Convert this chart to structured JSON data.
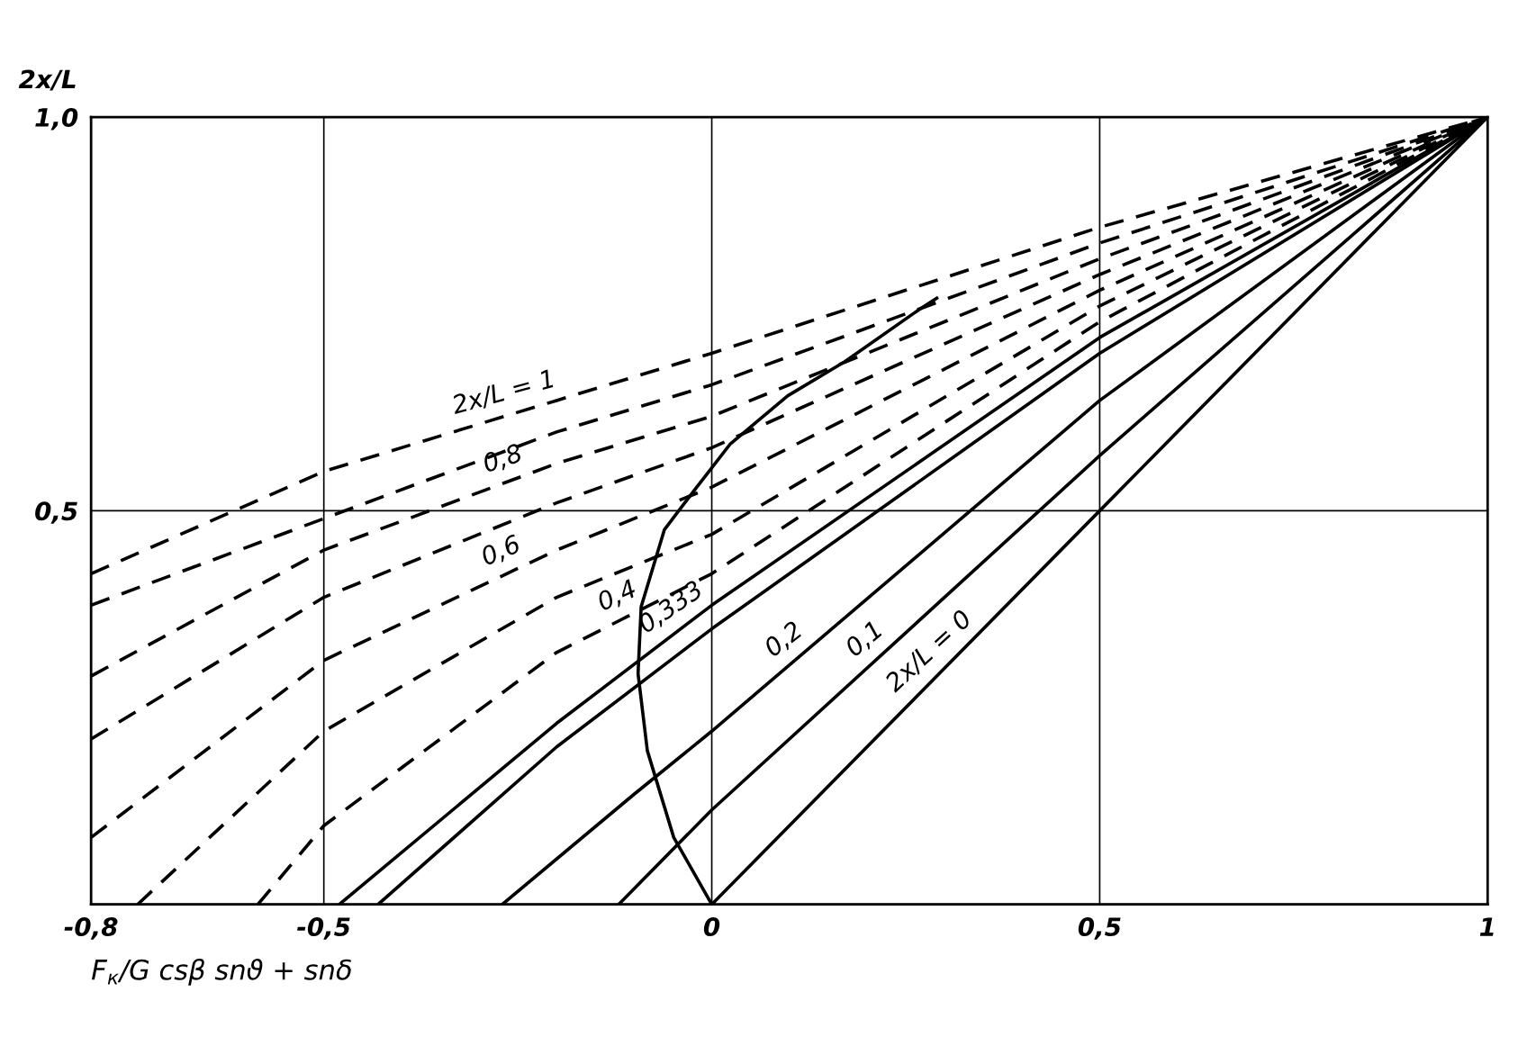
{
  "chart_data": {
    "type": "line",
    "xlabel": "F$_{к}$/G csβ snϑ + snδ",
    "ylabel": "2x/L",
    "xlim": [
      -0.8,
      1
    ],
    "ylim": [
      0,
      1
    ],
    "xticks": [
      {
        "value": -0.8,
        "label": "-0,8"
      },
      {
        "value": -0.5,
        "label": "-0,5"
      },
      0,
      {
        "value": 0.5,
        "label": "0,5"
      },
      1
    ],
    "yticks": [
      {
        "value": 0,
        "label": null
      },
      {
        "value": 0.5,
        "label": "0,5"
      },
      {
        "value": 1,
        "label": "1,0"
      }
    ],
    "grid": true,
    "marker": "none",
    "series": [
      {
        "name": "2x/L = 0",
        "color": "#000000",
        "line_style": "solid",
        "x": [
          0,
          0.5,
          1
        ],
        "values": [
          0,
          0.5,
          1
        ]
      },
      {
        "name": "0,1",
        "color": "#000000",
        "line_style": "solid",
        "x": [
          -0.12,
          0,
          0.5,
          1
        ],
        "values": [
          0,
          0.12,
          0.57,
          1
        ]
      },
      {
        "name": "0,2",
        "color": "#000000",
        "line_style": "solid",
        "x": [
          -0.27,
          -0.1,
          0,
          0.5,
          1
        ],
        "values": [
          0,
          0.14,
          0.22,
          0.64,
          1
        ]
      },
      {
        "color": "#000000",
        "line_style": "solid",
        "x": [
          -0.43,
          -0.2,
          0,
          0.5,
          1
        ],
        "values": [
          0,
          0.2,
          0.35,
          0.7,
          1
        ]
      },
      {
        "name": "0,333",
        "color": "#000000",
        "line_style": "solid",
        "x": [
          -0.48,
          -0.2,
          0,
          0.5,
          1
        ],
        "values": [
          0,
          0.23,
          0.38,
          0.72,
          1
        ]
      },
      {
        "name": "0,4",
        "color": "#000000",
        "line_style": "dashed",
        "x": [
          -0.585,
          -0.5,
          -0.2,
          0,
          0.5,
          1
        ],
        "values": [
          0,
          0.1,
          0.32,
          0.42,
          0.74,
          1
        ]
      },
      {
        "color": "#000000",
        "line_style": "dashed",
        "x": [
          -0.74,
          -0.5,
          -0.2,
          0,
          0.5,
          1
        ],
        "values": [
          0,
          0.22,
          0.39,
          0.47,
          0.76,
          1
        ]
      },
      {
        "name": "0,6",
        "color": "#000000",
        "line_style": "dashed",
        "x": [
          -0.8,
          -0.5,
          -0.2,
          0,
          0.5,
          1
        ],
        "values": [
          0.085,
          0.31,
          0.45,
          0.53,
          0.78,
          1
        ]
      },
      {
        "color": "#000000",
        "line_style": "dashed",
        "x": [
          -0.8,
          -0.5,
          -0.2,
          0,
          0.5,
          1
        ],
        "values": [
          0.21,
          0.39,
          0.51,
          0.58,
          0.8,
          1
        ]
      },
      {
        "name": "0,8",
        "color": "#000000",
        "line_style": "dashed",
        "x": [
          -0.8,
          -0.5,
          -0.2,
          0,
          0.5,
          1
        ],
        "values": [
          0.29,
          0.45,
          0.56,
          0.62,
          0.82,
          1
        ]
      },
      {
        "color": "#000000",
        "line_style": "dashed",
        "x": [
          -0.8,
          -0.5,
          -0.2,
          0,
          0.5,
          1
        ],
        "values": [
          0.38,
          0.49,
          0.6,
          0.66,
          0.84,
          1
        ]
      },
      {
        "name": "2x/L = 1",
        "color": "#000000",
        "line_style": "dashed",
        "x": [
          -0.8,
          -0.5,
          -0.2,
          0,
          0.5,
          1
        ],
        "values": [
          0.42,
          0.55,
          0.64,
          0.7,
          0.86,
          1
        ]
      },
      {
        "color": "#000000",
        "line_style": "solid",
        "x": [
          0,
          -0.049,
          -0.083,
          -0.095,
          -0.091,
          -0.061,
          -0.024,
          0.024,
          0.098,
          0.171,
          0.268,
          0.29
        ],
        "values": [
          0,
          0.085,
          0.195,
          0.293,
          0.378,
          0.476,
          0.524,
          0.585,
          0.646,
          0.689,
          0.756,
          0.77
        ]
      }
    ]
  }
}
